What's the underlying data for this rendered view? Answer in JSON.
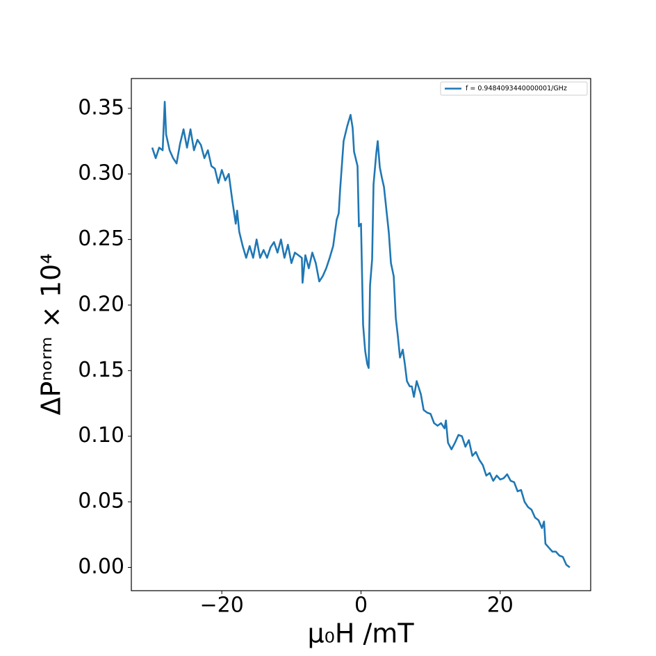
{
  "chart_data": {
    "type": "line",
    "xlabel": "μ₀H /mT",
    "ylabel": "ΔPⁿᵒʳᵐ × 10⁴",
    "legend": "upper right",
    "grid": false,
    "xlim": [
      -33,
      33
    ],
    "ylim": [
      -0.01775,
      0.3727
    ],
    "xticks": [
      {
        "value": -20,
        "label": "−20"
      },
      0,
      20
    ],
    "yticks": [
      {
        "value": 0,
        "label": "0.00"
      },
      {
        "value": 0.05,
        "label": "0.05"
      },
      {
        "value": 0.1,
        "label": "0.10"
      },
      {
        "value": 0.15,
        "label": "0.15"
      },
      {
        "value": 0.2,
        "label": "0.20"
      },
      {
        "value": 0.25,
        "label": "0.25"
      },
      {
        "value": 0.3,
        "label": "0.30"
      },
      {
        "value": 0.35,
        "label": "0.35"
      }
    ],
    "x": [
      -30,
      -29.5,
      -29,
      -28.5,
      -28.2,
      -28,
      -27.5,
      -27,
      -26.5,
      -26,
      -25.5,
      -25,
      -24.5,
      -24,
      -23.5,
      -23,
      -22.5,
      -22,
      -21.5,
      -21,
      -20.5,
      -20,
      -19.5,
      -19,
      -18.5,
      -18,
      -17.8,
      -17.5,
      -17,
      -16.5,
      -16,
      -15.5,
      -15,
      -14.5,
      -14,
      -13.5,
      -13,
      -12.5,
      -12,
      -11.5,
      -11,
      -10.5,
      -10,
      -9.5,
      -9,
      -8.5,
      -8.4,
      -8,
      -7.5,
      -7,
      -6.5,
      -6,
      -5.5,
      -5,
      -4.5,
      -4,
      -3.5,
      -3.2,
      -3,
      -2.5,
      -2,
      -1.5,
      -1.2,
      -1,
      -0.5,
      -0.3,
      0,
      0.3,
      0.6,
      0.9,
      1.1,
      1.3,
      1.6,
      1.8,
      2.2,
      2.4,
      2.7,
      3,
      3.3,
      3.6,
      4,
      4.3,
      4.7,
      5,
      5.3,
      5.6,
      6,
      6.3,
      6.6,
      7,
      7.3,
      7.6,
      8,
      8.3,
      8.6,
      9,
      9.5,
      10,
      10.5,
      11,
      11.5,
      12,
      12.2,
      12.5,
      13,
      13.5,
      14,
      14.5,
      15,
      15.5,
      16,
      16.5,
      17,
      17.5,
      18,
      18.5,
      19,
      19.5,
      20,
      20.5,
      21,
      21.5,
      22,
      22.5,
      23,
      23.5,
      24,
      24.5,
      25,
      25.5,
      26,
      26.3,
      26.5,
      27,
      27.5,
      28,
      28.5,
      29,
      29.5,
      30
    ],
    "series": [
      {
        "name": "f = 0.9484093440000001/GHz",
        "color": "#1f77b4",
        "values": [
          0.32,
          0.312,
          0.32,
          0.318,
          0.355,
          0.33,
          0.318,
          0.312,
          0.308,
          0.323,
          0.334,
          0.32,
          0.334,
          0.318,
          0.326,
          0.322,
          0.312,
          0.318,
          0.306,
          0.304,
          0.293,
          0.303,
          0.295,
          0.3,
          0.28,
          0.262,
          0.272,
          0.256,
          0.245,
          0.236,
          0.245,
          0.236,
          0.25,
          0.236,
          0.242,
          0.236,
          0.244,
          0.248,
          0.24,
          0.25,
          0.236,
          0.246,
          0.232,
          0.24,
          0.238,
          0.236,
          0.217,
          0.238,
          0.228,
          0.24,
          0.232,
          0.218,
          0.222,
          0.228,
          0.236,
          0.245,
          0.265,
          0.27,
          0.288,
          0.325,
          0.336,
          0.345,
          0.335,
          0.317,
          0.306,
          0.26,
          0.262,
          0.185,
          0.165,
          0.155,
          0.152,
          0.215,
          0.235,
          0.292,
          0.316,
          0.325,
          0.305,
          0.297,
          0.29,
          0.275,
          0.255,
          0.232,
          0.222,
          0.19,
          0.176,
          0.16,
          0.166,
          0.155,
          0.142,
          0.138,
          0.138,
          0.13,
          0.142,
          0.137,
          0.132,
          0.12,
          0.118,
          0.117,
          0.11,
          0.108,
          0.11,
          0.106,
          0.112,
          0.095,
          0.09,
          0.095,
          0.101,
          0.1,
          0.092,
          0.097,
          0.085,
          0.088,
          0.082,
          0.078,
          0.07,
          0.072,
          0.066,
          0.07,
          0.067,
          0.068,
          0.071,
          0.066,
          0.065,
          0.058,
          0.059,
          0.05,
          0.046,
          0.044,
          0.038,
          0.036,
          0.03,
          0.035,
          0.018,
          0.015,
          0.012,
          0.012,
          0.009,
          0.008,
          0.002,
          0.0
        ]
      }
    ]
  }
}
